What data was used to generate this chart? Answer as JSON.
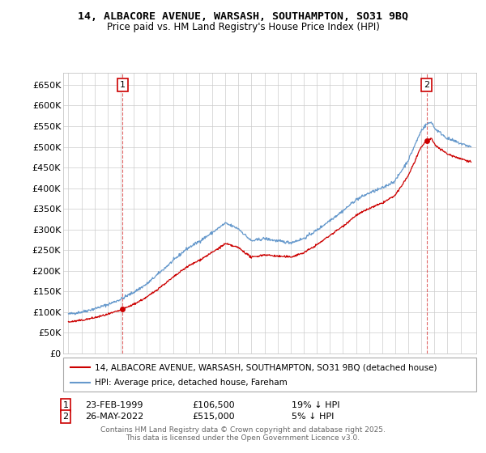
{
  "title": "14, ALBACORE AVENUE, WARSASH, SOUTHAMPTON, SO31 9BQ",
  "subtitle": "Price paid vs. HM Land Registry's House Price Index (HPI)",
  "legend_label_red": "14, ALBACORE AVENUE, WARSASH, SOUTHAMPTON, SO31 9BQ (detached house)",
  "legend_label_blue": "HPI: Average price, detached house, Fareham",
  "annotation1_label": "1",
  "annotation1_date": "23-FEB-1999",
  "annotation1_price": "£106,500",
  "annotation1_hpi": "19% ↓ HPI",
  "annotation2_label": "2",
  "annotation2_date": "26-MAY-2022",
  "annotation2_price": "£515,000",
  "annotation2_hpi": "5% ↓ HPI",
  "footer": "Contains HM Land Registry data © Crown copyright and database right 2025.\nThis data is licensed under the Open Government Licence v3.0.",
  "red_color": "#cc0000",
  "blue_color": "#6699cc",
  "grid_color": "#cccccc",
  "background_color": "#ffffff",
  "ylim": [
    0,
    680000
  ],
  "yticks": [
    0,
    50000,
    100000,
    150000,
    200000,
    250000,
    300000,
    350000,
    400000,
    450000,
    500000,
    550000,
    600000,
    650000
  ],
  "xstart_year": 1995,
  "xend_year": 2026,
  "sale1_year": 1999.14,
  "sale1_price": 106500,
  "sale2_year": 2022.4,
  "sale2_price": 515000
}
